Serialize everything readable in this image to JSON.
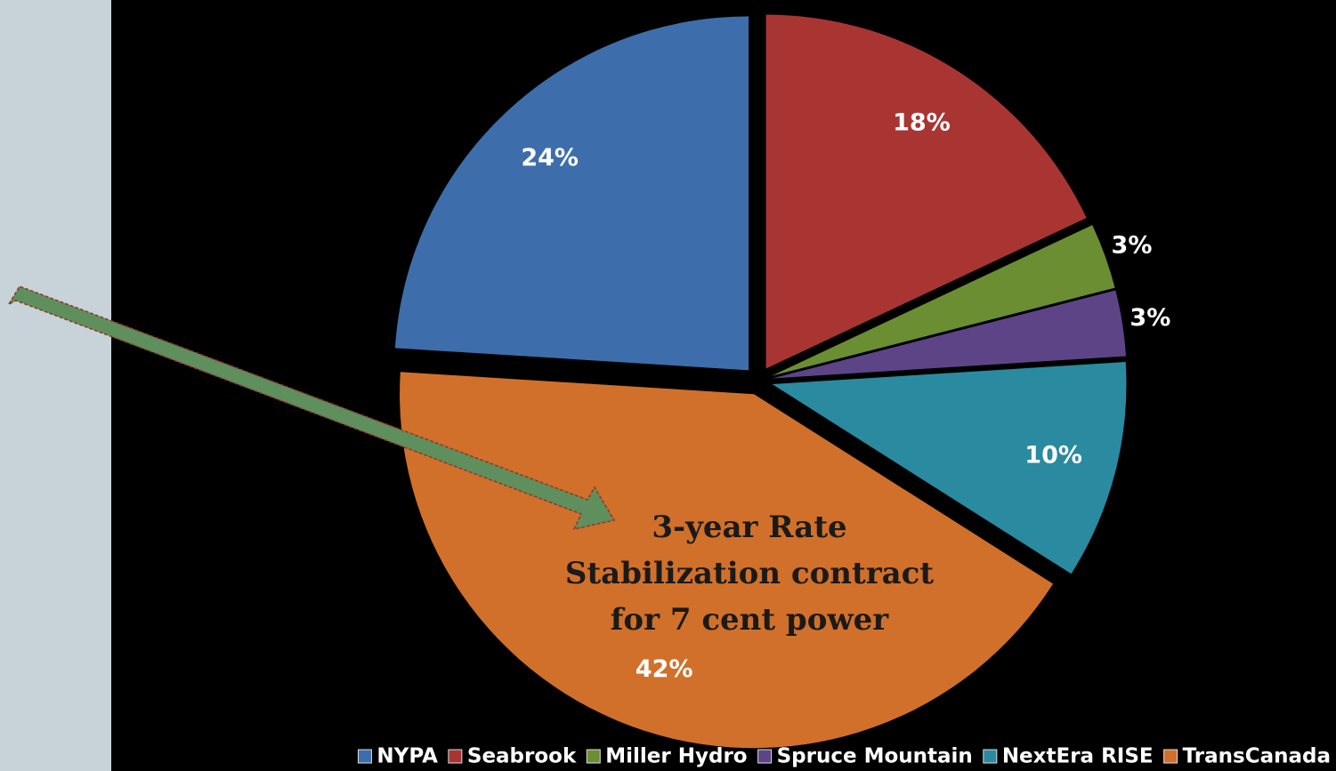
{
  "chart_data": {
    "type": "pie",
    "categories": [
      "NYPA",
      "Seabrook",
      "Miller Hydro",
      "Spruce Mountain",
      "NextEra RISE",
      "TransCanada"
    ],
    "values": [
      24,
      18,
      3,
      3,
      10,
      42
    ],
    "value_labels": [
      "24%",
      "18%",
      "3%",
      "3%",
      "10%",
      "42%"
    ],
    "colors": [
      "#3d6eab",
      "#a83532",
      "#6b8e32",
      "#5d4487",
      "#2a8aa0",
      "#d1702a"
    ],
    "annotation": "3-year Rate Stabilization contract for 7 cent power",
    "legend": "bottom"
  }
}
